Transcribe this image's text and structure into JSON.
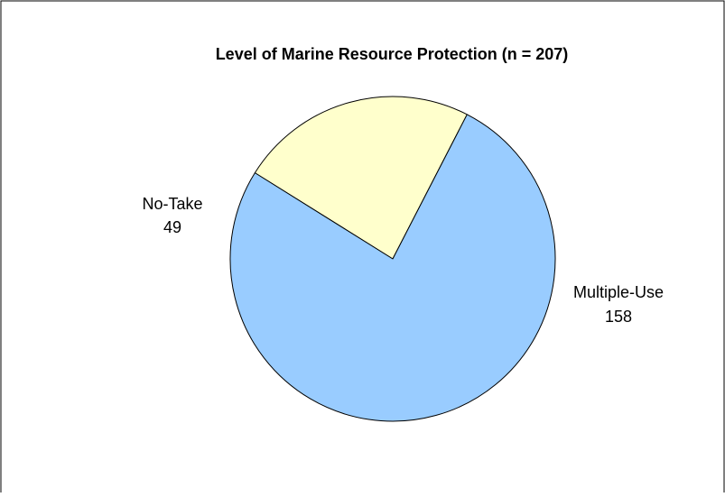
{
  "chart_data": {
    "type": "pie",
    "title": "Level of Marine Resource Protection (n = 207)",
    "slices": [
      {
        "label": "No-Take",
        "value": 49,
        "color": "#FFFFCC"
      },
      {
        "label": "Multiple-Use",
        "value": 158,
        "color": "#99CCFF"
      }
    ],
    "start_angle_deg": 302,
    "direction": "clockwise",
    "legend": "none",
    "colors": {
      "background": "#FFFFFF",
      "border": "#000000",
      "slice_outline": "#000000"
    }
  }
}
